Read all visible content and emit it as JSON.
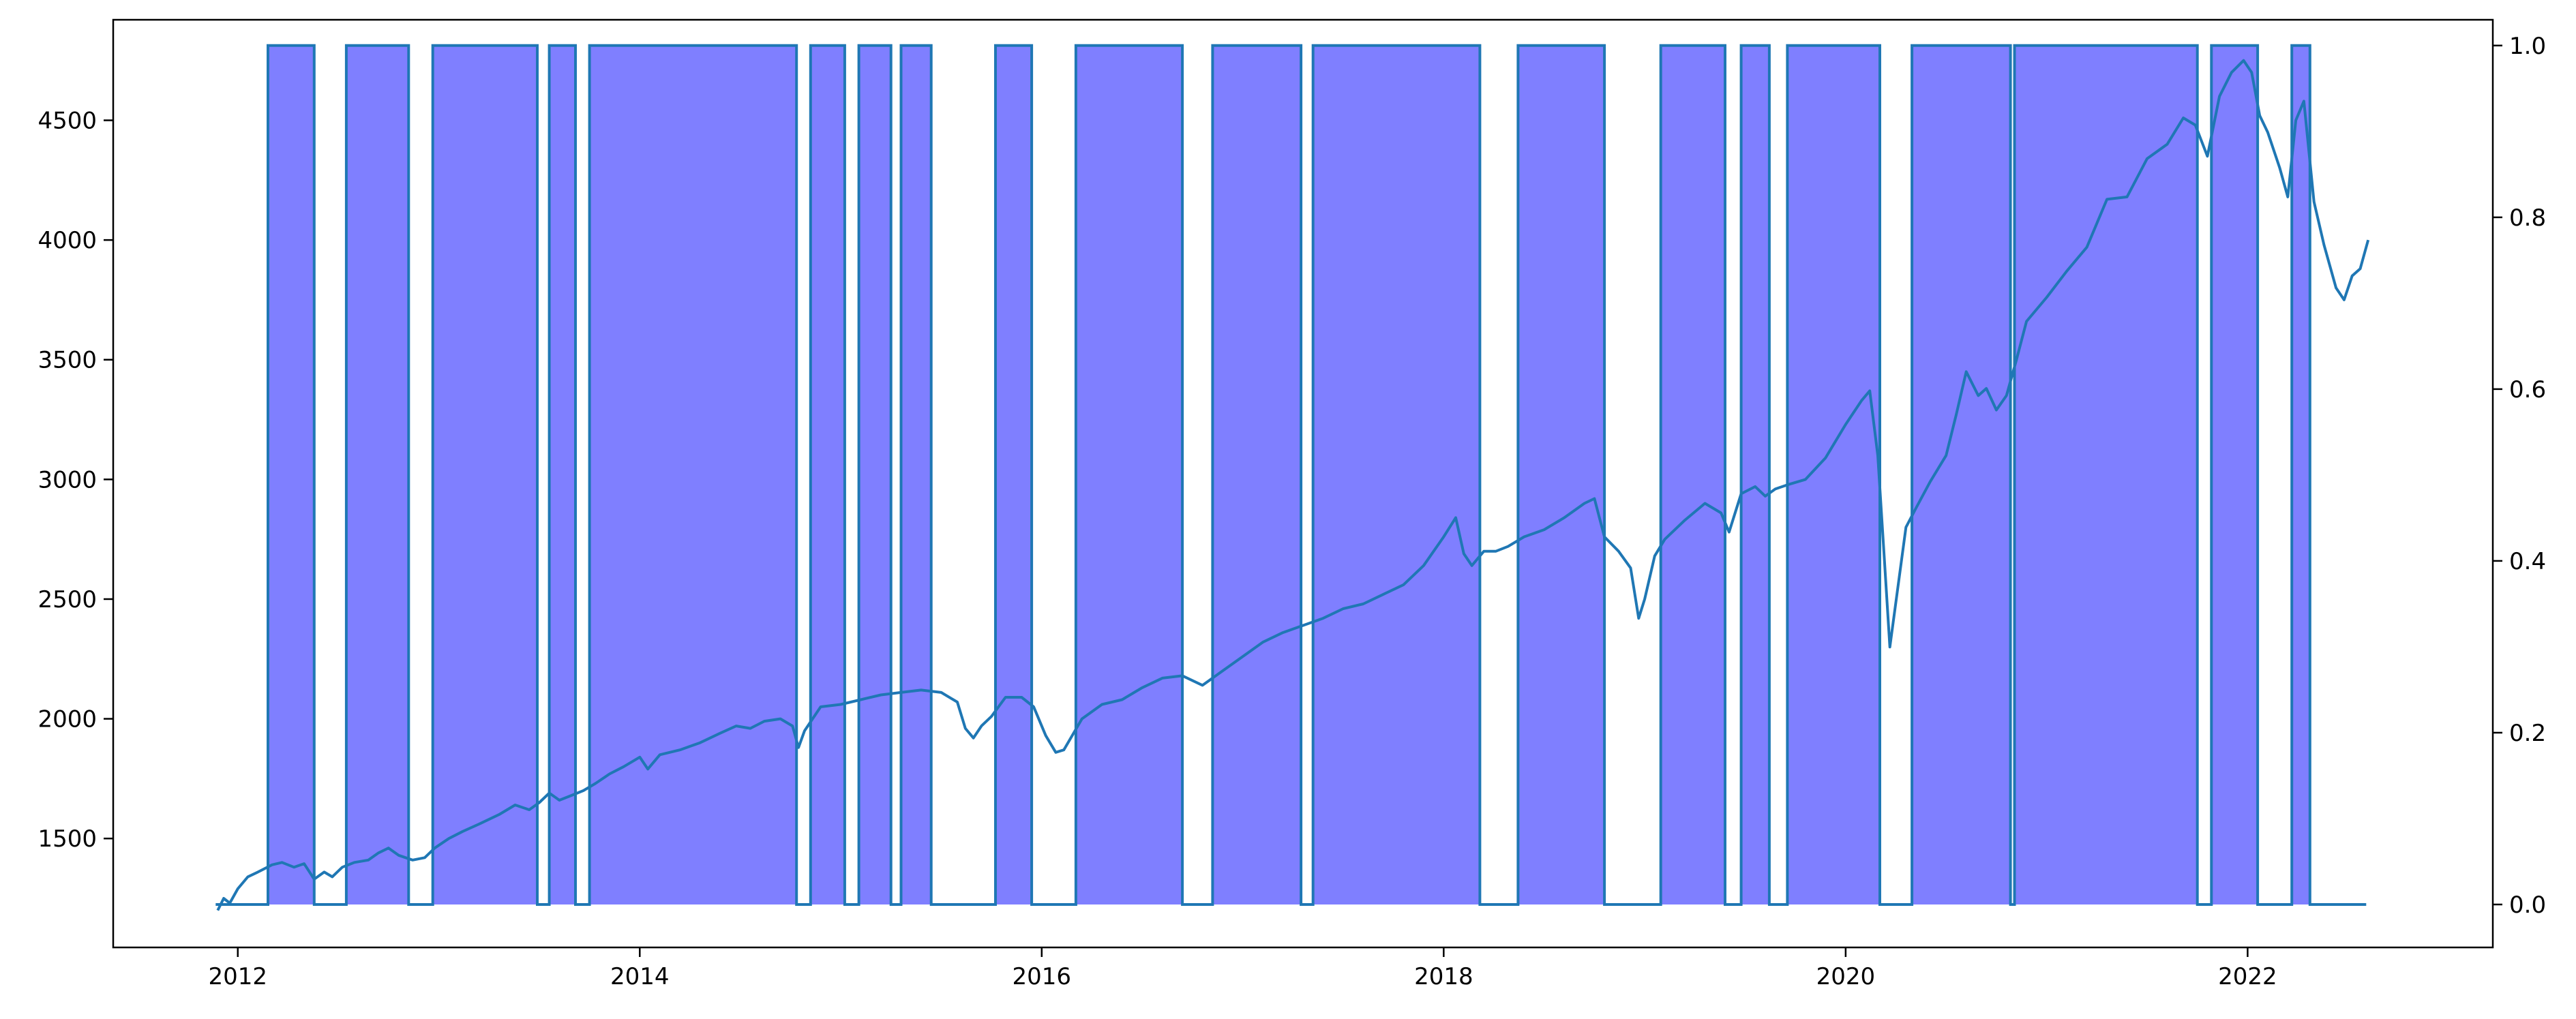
{
  "chart_data": {
    "type": "line",
    "title": "",
    "xlabel": "",
    "ylabel": "",
    "x_range": [
      2011.38,
      2023.22
    ],
    "x_ticks": [
      2012,
      2014,
      2016,
      2018,
      2020,
      2022
    ],
    "x_tick_labels": [
      "2012",
      "2014",
      "2016",
      "2018",
      "2020",
      "2022"
    ],
    "left_axis": {
      "ylim": [
        1045,
        4920
      ],
      "ticks": [
        1500,
        2000,
        2500,
        3000,
        3500,
        4000,
        4500
      ],
      "tick_labels": [
        "1500",
        "2000",
        "2500",
        "3000",
        "3500",
        "4000",
        "4500"
      ]
    },
    "right_axis": {
      "ylim": [
        -0.05,
        1.03
      ],
      "ticks": [
        0.0,
        0.2,
        0.4,
        0.6,
        0.8,
        1.0
      ],
      "tick_labels": [
        "0.0",
        "0.2",
        "0.4",
        "0.6",
        "0.8",
        "1.0"
      ]
    },
    "grid": false,
    "legend": "none",
    "series": [
      {
        "axis": "left",
        "style": "line",
        "color": "#1f77b4",
        "x": [
          2011.9,
          2011.93,
          2011.96,
          2012.0,
          2012.05,
          2012.1,
          2012.17,
          2012.22,
          2012.28,
          2012.33,
          2012.38,
          2012.43,
          2012.47,
          2012.52,
          2012.58,
          2012.65,
          2012.7,
          2012.75,
          2012.8,
          2012.87,
          2012.93,
          2012.98,
          2013.05,
          2013.12,
          2013.2,
          2013.3,
          2013.38,
          2013.45,
          2013.5,
          2013.55,
          2013.6,
          2013.66,
          2013.72,
          2013.78,
          2013.85,
          2013.92,
          2014.0,
          2014.04,
          2014.1,
          2014.2,
          2014.3,
          2014.4,
          2014.48,
          2014.55,
          2014.62,
          2014.7,
          2014.76,
          2014.79,
          2014.82,
          2014.9,
          2015.0,
          2015.1,
          2015.2,
          2015.3,
          2015.4,
          2015.5,
          2015.58,
          2015.62,
          2015.66,
          2015.7,
          2015.75,
          2015.82,
          2015.9,
          2015.96,
          2016.02,
          2016.07,
          2016.11,
          2016.2,
          2016.3,
          2016.4,
          2016.5,
          2016.6,
          2016.7,
          2016.8,
          2016.9,
          2017.0,
          2017.1,
          2017.2,
          2017.3,
          2017.4,
          2017.5,
          2017.6,
          2017.7,
          2017.8,
          2017.9,
          2018.0,
          2018.06,
          2018.1,
          2018.14,
          2018.2,
          2018.26,
          2018.32,
          2018.4,
          2018.5,
          2018.6,
          2018.7,
          2018.75,
          2018.8,
          2018.87,
          2018.93,
          2018.97,
          2019.0,
          2019.05,
          2019.1,
          2019.2,
          2019.3,
          2019.38,
          2019.42,
          2019.48,
          2019.55,
          2019.6,
          2019.65,
          2019.72,
          2019.8,
          2019.9,
          2020.0,
          2020.08,
          2020.12,
          2020.16,
          2020.19,
          2020.22,
          2020.26,
          2020.3,
          2020.35,
          2020.42,
          2020.5,
          2020.55,
          2020.6,
          2020.66,
          2020.7,
          2020.75,
          2020.8,
          2020.85,
          2020.9,
          2021.0,
          2021.1,
          2021.2,
          2021.3,
          2021.4,
          2021.5,
          2021.6,
          2021.68,
          2021.74,
          2021.8,
          2021.86,
          2021.92,
          2021.98,
          2022.02,
          2022.06,
          2022.1,
          2022.16,
          2022.2,
          2022.24,
          2022.28,
          2022.33,
          2022.38,
          2022.44,
          2022.48,
          2022.52,
          2022.56,
          2022.6
        ],
        "y": [
          1200,
          1250,
          1230,
          1290,
          1340,
          1360,
          1390,
          1400,
          1380,
          1395,
          1330,
          1360,
          1340,
          1380,
          1400,
          1410,
          1440,
          1460,
          1430,
          1410,
          1420,
          1460,
          1500,
          1530,
          1560,
          1600,
          1640,
          1620,
          1650,
          1690,
          1660,
          1680,
          1700,
          1730,
          1770,
          1800,
          1840,
          1790,
          1850,
          1870,
          1900,
          1940,
          1970,
          1960,
          1990,
          2000,
          1970,
          1880,
          1950,
          2050,
          2060,
          2080,
          2100,
          2110,
          2120,
          2110,
          2070,
          1960,
          1920,
          1970,
          2010,
          2090,
          2090,
          2050,
          1930,
          1860,
          1870,
          2000,
          2060,
          2080,
          2130,
          2170,
          2180,
          2140,
          2200,
          2260,
          2320,
          2360,
          2390,
          2420,
          2460,
          2480,
          2520,
          2560,
          2640,
          2760,
          2840,
          2690,
          2640,
          2700,
          2700,
          2720,
          2760,
          2790,
          2840,
          2900,
          2920,
          2760,
          2700,
          2630,
          2420,
          2500,
          2680,
          2750,
          2830,
          2900,
          2860,
          2780,
          2940,
          2970,
          2930,
          2960,
          2980,
          3000,
          3090,
          3230,
          3330,
          3370,
          3100,
          2700,
          2300,
          2550,
          2800,
          2880,
          2990,
          3100,
          3270,
          3450,
          3350,
          3380,
          3290,
          3350,
          3500,
          3660,
          3760,
          3870,
          3970,
          4170,
          4180,
          4340,
          4400,
          4510,
          4480,
          4350,
          4600,
          4700,
          4750,
          4700,
          4520,
          4450,
          4300,
          4180,
          4500,
          4580,
          4160,
          3980,
          3800,
          3750,
          3850,
          3880,
          4000
        ]
      },
      {
        "axis": "right",
        "style": "step-fill",
        "color": "#1f77b4",
        "fill": "#0000ff",
        "fill_opacity": 0.5,
        "x": [
          2011.89,
          2012.15,
          2012.15,
          2012.38,
          2012.38,
          2012.54,
          2012.54,
          2012.85,
          2012.85,
          2012.97,
          2012.97,
          2013.49,
          2013.49,
          2013.55,
          2013.55,
          2013.68,
          2013.68,
          2013.75,
          2013.75,
          2014.78,
          2014.78,
          2014.85,
          2014.85,
          2015.02,
          2015.02,
          2015.09,
          2015.09,
          2015.25,
          2015.25,
          2015.3,
          2015.3,
          2015.45,
          2015.45,
          2015.77,
          2015.77,
          2015.95,
          2015.95,
          2016.17,
          2016.17,
          2016.7,
          2016.7,
          2016.85,
          2016.85,
          2017.29,
          2017.29,
          2017.35,
          2017.35,
          2018.18,
          2018.18,
          2018.37,
          2018.37,
          2018.8,
          2018.8,
          2019.08,
          2019.08,
          2019.4,
          2019.4,
          2019.48,
          2019.48,
          2019.62,
          2019.62,
          2019.71,
          2019.71,
          2020.17,
          2020.17,
          2020.33,
          2020.33,
          2020.82,
          2020.82,
          2020.84,
          2020.84,
          2021.75,
          2021.75,
          2021.82,
          2021.82,
          2022.05,
          2022.05,
          2022.22,
          2022.22,
          2022.31,
          2022.31,
          2022.59
        ],
        "y": [
          0,
          0,
          1,
          1,
          0,
          0,
          1,
          1,
          0,
          0,
          1,
          1,
          0,
          0,
          1,
          1,
          0,
          0,
          1,
          1,
          0,
          0,
          1,
          1,
          0,
          0,
          1,
          1,
          0,
          0,
          1,
          1,
          0,
          0,
          1,
          1,
          0,
          0,
          1,
          1,
          0,
          0,
          1,
          1,
          0,
          0,
          1,
          1,
          0,
          0,
          1,
          1,
          0,
          0,
          1,
          1,
          0,
          0,
          1,
          1,
          0,
          0,
          1,
          1,
          0,
          0,
          1,
          1,
          0,
          0,
          1,
          1,
          0,
          0,
          1,
          1,
          0,
          0,
          1,
          1,
          0,
          0
        ]
      }
    ]
  }
}
